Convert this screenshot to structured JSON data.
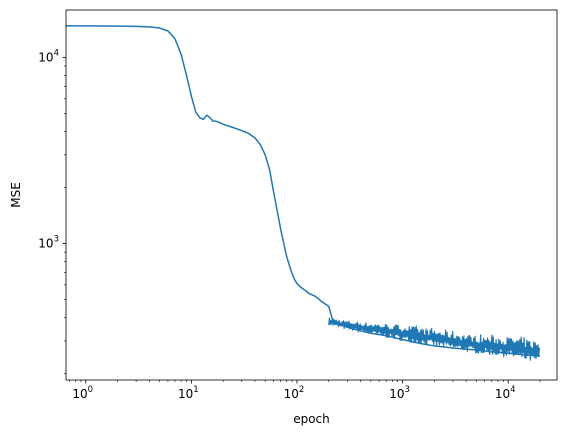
{
  "chart_data": {
    "type": "line",
    "title": "",
    "xlabel": "epoch",
    "ylabel": "MSE",
    "xscale": "log",
    "yscale": "log",
    "xlim": [
      0.65,
      29000
    ],
    "ylim": [
      185,
      18000
    ],
    "grid": false,
    "legend": "none",
    "x_ticks": [
      {
        "value": 1,
        "base": "10",
        "exp": "0"
      },
      {
        "value": 10,
        "base": "10",
        "exp": "1"
      },
      {
        "value": 100,
        "base": "10",
        "exp": "2"
      },
      {
        "value": 1000,
        "base": "10",
        "exp": "3"
      },
      {
        "value": 10000,
        "base": "10",
        "exp": "4"
      }
    ],
    "y_ticks": [
      {
        "value": 1000,
        "base": "10",
        "exp": "3"
      },
      {
        "value": 10000,
        "base": "10",
        "exp": "4"
      }
    ],
    "series": [
      {
        "color": "#1f77b4",
        "x": [
          0.65,
          1,
          2,
          3,
          4,
          5,
          6,
          7,
          8,
          9,
          10,
          11,
          12,
          13,
          14,
          15,
          16,
          17,
          18,
          20,
          22,
          25,
          30,
          35,
          40,
          45,
          50,
          55,
          60,
          65,
          70,
          75,
          80,
          85,
          90,
          95,
          100,
          110,
          120,
          130,
          150,
          170,
          200,
          220,
          250,
          300,
          400,
          500,
          700,
          1000,
          1500,
          2000,
          3000,
          5000,
          7000,
          10000,
          15000,
          20000
        ],
        "y": [
          14800,
          14780,
          14750,
          14700,
          14600,
          14400,
          13900,
          12600,
          10400,
          8000,
          6200,
          5100,
          4750,
          4650,
          4900,
          4750,
          4550,
          4550,
          4500,
          4380,
          4300,
          4200,
          4050,
          3900,
          3700,
          3400,
          3000,
          2500,
          1900,
          1500,
          1200,
          1000,
          850,
          760,
          690,
          640,
          610,
          580,
          560,
          540,
          520,
          490,
          460,
          380,
          370,
          355,
          340,
          330,
          320,
          305,
          290,
          282,
          275,
          268,
          262,
          258,
          252,
          248
        ],
        "noise_band": {
          "x": [
            200,
            300,
            500,
            1000,
            2000,
            5000,
            10000,
            20000
          ],
          "low": [
            365,
            345,
            325,
            300,
            280,
            258,
            245,
            225
          ],
          "high": [
            400,
            385,
            375,
            365,
            345,
            320,
            315,
            300
          ]
        }
      }
    ]
  }
}
